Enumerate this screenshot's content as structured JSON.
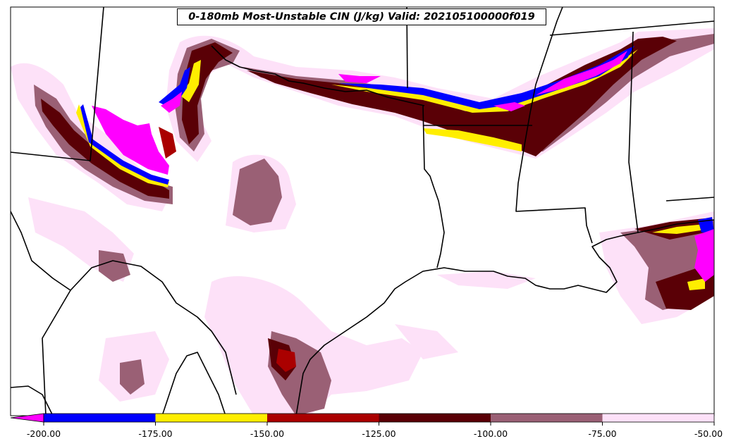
{
  "title": "0-180mb Most-Unstable CIN (J/kg) Valid: 202105100000f019",
  "colorbar": {
    "ticks": [
      "-200.00",
      "-175.00",
      "-150.00",
      "-125.00",
      "-100.00",
      "-75.00",
      "-50.00"
    ],
    "bins": [
      {
        "range": [
          -200,
          -175
        ],
        "color": "#0000ff"
      },
      {
        "range": [
          -175,
          -150
        ],
        "color": "#ffee00"
      },
      {
        "range": [
          -150,
          -125
        ],
        "color": "#aa0000"
      },
      {
        "range": [
          -125,
          -100
        ],
        "color": "#5a0006"
      },
      {
        "range": [
          -100,
          -75
        ],
        "color": "#9a6075"
      },
      {
        "range": [
          -75,
          -50
        ],
        "color": "#fde1f8"
      }
    ],
    "under_color": "#ff00ff"
  },
  "colors": {
    "magenta": "#ff00ff",
    "blue": "#0000ff",
    "yellow": "#ffee00",
    "red": "#aa0000",
    "darkred": "#5a0006",
    "mauve": "#9a6075",
    "pink": "#fde1f8",
    "boundary": "#000000"
  }
}
